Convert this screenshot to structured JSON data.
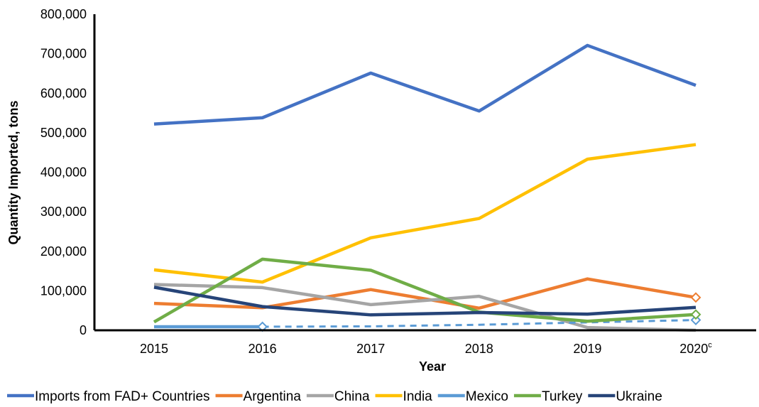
{
  "chart_data": {
    "type": "line",
    "title": "",
    "xlabel": "Year",
    "ylabel": "Quantity Imported, tons",
    "categories": [
      "2015",
      "2016",
      "2017",
      "2018",
      "2019",
      "2020"
    ],
    "last_category_superscript": "c",
    "yticks": [
      "0",
      "100,000",
      "200,000",
      "300,000",
      "400,000",
      "500,000",
      "600,000",
      "700,000",
      "800,000"
    ],
    "ylim": [
      0,
      800000
    ],
    "grid": false,
    "legend_position": "bottom",
    "series": [
      {
        "name": "Imports from FAD+ Countries",
        "color": "#4472c4",
        "values": [
          522000,
          538000,
          651000,
          555000,
          721000,
          620000
        ],
        "marker": "none",
        "dashed_from_index": null
      },
      {
        "name": "Argentina",
        "color": "#ed7d31",
        "values": [
          68000,
          57000,
          103000,
          56000,
          130000,
          83000
        ],
        "marker": "diamond-last",
        "dashed_from_index": null
      },
      {
        "name": "China",
        "color": "#a5a5a5",
        "values": [
          116000,
          108000,
          65000,
          86000,
          7000,
          0
        ],
        "marker": "none",
        "dashed_from_index": null
      },
      {
        "name": "India",
        "color": "#ffc000",
        "values": [
          153000,
          122000,
          234000,
          283000,
          433000,
          470000
        ],
        "marker": "none",
        "dashed_from_index": null
      },
      {
        "name": "Mexico",
        "color": "#5b9bd5",
        "values": [
          9000,
          9000,
          10000,
          14000,
          20000,
          26000
        ],
        "marker": "diamond-solid-ends",
        "dashed_from_index": 1
      },
      {
        "name": "Turkey",
        "color": "#70ad47",
        "values": [
          21000,
          180000,
          152000,
          46000,
          23000,
          40000
        ],
        "marker": "diamond-last",
        "dashed_from_index": null
      },
      {
        "name": "Ukraine",
        "color": "#264478",
        "values": [
          109000,
          60000,
          39000,
          45000,
          41000,
          58000
        ],
        "marker": "none",
        "dashed_from_index": null
      }
    ]
  }
}
